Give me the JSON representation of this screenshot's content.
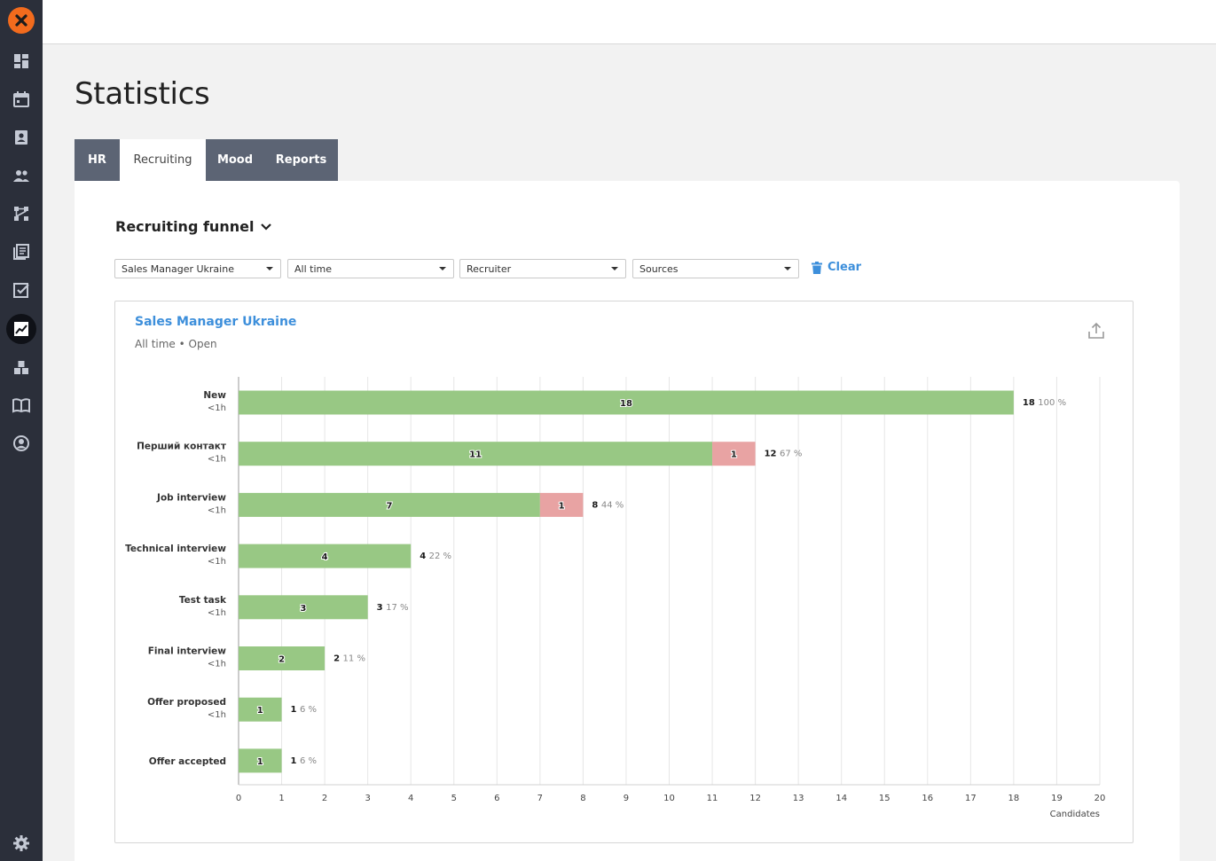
{
  "app": {
    "nav": [
      {
        "icon": "dashboard-icon"
      },
      {
        "icon": "calendar-icon"
      },
      {
        "icon": "contacts-icon"
      },
      {
        "icon": "people-icon"
      },
      {
        "icon": "workflow-icon"
      },
      {
        "icon": "documents-icon"
      },
      {
        "icon": "tasks-icon"
      },
      {
        "icon": "statistics-icon"
      },
      {
        "icon": "modules-icon"
      },
      {
        "icon": "knowledge-icon"
      },
      {
        "icon": "profile-icon"
      }
    ]
  },
  "page": {
    "title": "Statistics"
  },
  "tabs": [
    {
      "label": "HR"
    },
    {
      "label": "Recruiting"
    },
    {
      "label": "Mood"
    },
    {
      "label": "Reports"
    }
  ],
  "section": {
    "title": "Recruiting funnel"
  },
  "filters": {
    "vacancy": "Sales Manager Ukraine",
    "period": "All time",
    "recruiter": "Recruiter",
    "sources": "Sources",
    "clear_label": "Clear"
  },
  "panel": {
    "title": "Sales Manager Ukraine",
    "subtitle": "All time • Open"
  },
  "colors": {
    "passed": "#98c884",
    "rejected": "#e8a3a3",
    "accent": "#3d8fdb"
  },
  "chart_data": {
    "type": "bar",
    "orientation": "horizontal",
    "stacked": true,
    "categories": [
      "New",
      "Перший контакт",
      "Job interview",
      "Technical interview",
      "Test task",
      "Final interview",
      "Offer proposed",
      "Offer accepted"
    ],
    "durations": [
      "<1h",
      "<1h",
      "<1h",
      "<1h",
      "<1h",
      "<1h",
      "<1h",
      ""
    ],
    "series": [
      {
        "name": "passed",
        "values": [
          18,
          11,
          7,
          4,
          3,
          2,
          1,
          1
        ]
      },
      {
        "name": "rejected",
        "values": [
          0,
          1,
          1,
          0,
          0,
          0,
          0,
          0
        ]
      }
    ],
    "totals": [
      18,
      12,
      8,
      4,
      3,
      2,
      1,
      1
    ],
    "percents": [
      "100 %",
      "67 %",
      "44 %",
      "22 %",
      "17 %",
      "11 %",
      "6 %",
      "6 %"
    ],
    "xlim": [
      0,
      20
    ],
    "xticks": [
      0,
      1,
      2,
      3,
      4,
      5,
      6,
      7,
      8,
      9,
      10,
      11,
      12,
      13,
      14,
      15,
      16,
      17,
      18,
      19,
      20
    ],
    "xlabel": "Candidates",
    "grid": true
  }
}
